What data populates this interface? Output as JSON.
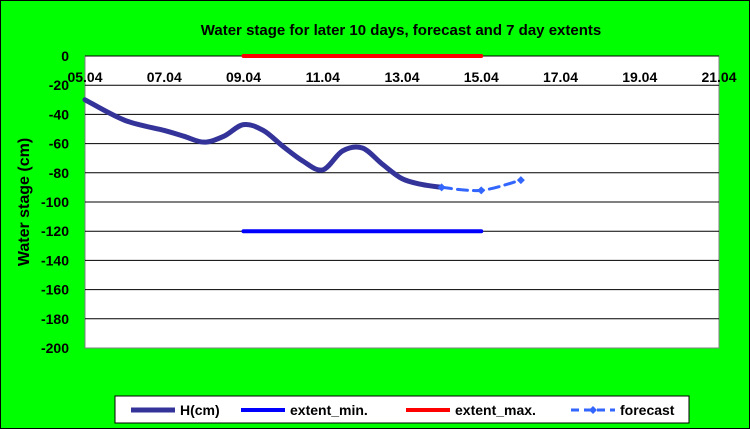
{
  "chart_data": {
    "type": "line",
    "title": "Water stage for later 10 days, forecast and 7 day extents",
    "ylabel": "Water stage (cm)",
    "xlabel": "",
    "x_ticks": [
      "05.04",
      "07.04",
      "09.04",
      "11.04",
      "13.04",
      "15.04",
      "17.04",
      "19.04",
      "21.04"
    ],
    "y_ticks": [
      0,
      -20,
      -40,
      -60,
      -80,
      -100,
      -120,
      -140,
      -160,
      -180,
      -200
    ],
    "xlim": [
      "05.04",
      "21.04"
    ],
    "ylim": [
      -200,
      0
    ],
    "grid": "horizontal",
    "legend_position": "bottom",
    "series": [
      {
        "name": "H(cm)",
        "color": "#333399",
        "style": "solid",
        "x": [
          5.0,
          6.0,
          7.0,
          7.5,
          8.0,
          8.5,
          9.0,
          9.5,
          10.0,
          10.5,
          11.0,
          11.5,
          12.0,
          12.5,
          13.0,
          13.5,
          14.0
        ],
        "values": [
          -30,
          -44,
          -51,
          -55,
          -59,
          -55,
          -47,
          -51,
          -62,
          -72,
          -78,
          -65,
          -63,
          -74,
          -84,
          -88,
          -90
        ]
      },
      {
        "name": "extent_min.",
        "color": "#0000ff",
        "style": "solid",
        "x": [
          9.0,
          15.0
        ],
        "values": [
          -120,
          -120
        ]
      },
      {
        "name": "extent_max.",
        "color": "#ff0000",
        "style": "solid",
        "x": [
          9.0,
          15.0
        ],
        "values": [
          0,
          0
        ]
      },
      {
        "name": "forecast",
        "color": "#3366ff",
        "style": "dashed",
        "x": [
          14.0,
          15.0,
          16.0
        ],
        "values": [
          -90,
          -92,
          -85
        ]
      }
    ]
  }
}
